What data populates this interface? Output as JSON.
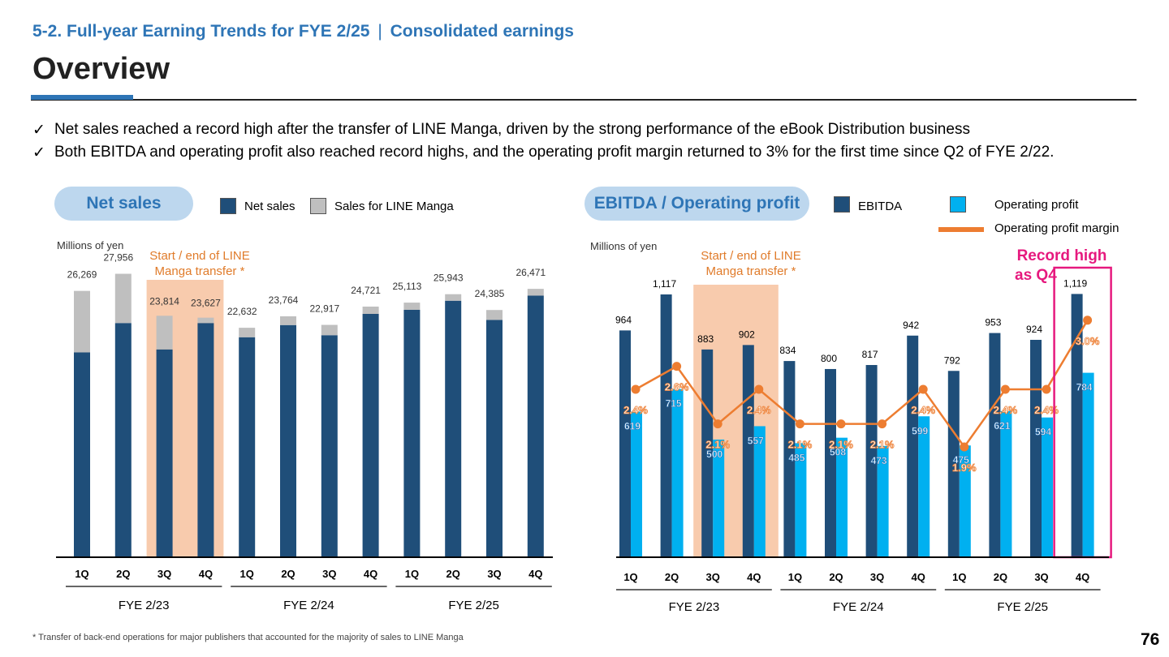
{
  "header": {
    "section": "5-2. Full-year Earning Trends for FYE 2/25",
    "separator": "|",
    "subsection": "Consolidated earnings",
    "title": "Overview"
  },
  "bullets": [
    {
      "mark": "✓",
      "text": "Net sales reached a record high after the transfer of LINE Manga, driven by the strong performance of the eBook Distribution business"
    },
    {
      "mark": "✓",
      "text": "Both EBITDA and operating profit also reached record highs, and the operating profit margin returned to 3% for the first time since Q2 of FYE 2/22."
    }
  ],
  "colors": {
    "brand_blue": "#2e75b6",
    "net_sales": "#1f4e79",
    "line_manga": "#bfbfbf",
    "ebitda": "#1f4e79",
    "operating_profit": "#00b0f0",
    "margin_line": "#ed7d31",
    "transfer_highlight": "#f8cbad",
    "record_highlight": "#e6197e",
    "pill_bg": "#bdd7ee"
  },
  "left_panel": {
    "pill_label": "Net sales",
    "legend": {
      "net_sales": "Net sales",
      "line_manga": "Sales for LINE Manga"
    },
    "unit": "Millions of yen",
    "transfer_note_line1": "Start / end of LINE",
    "transfer_note_line2": "Manga transfer *"
  },
  "right_panel": {
    "pill_label": "EBITDA / Operating profit",
    "legend": {
      "ebitda": "EBITDA",
      "operating_profit": "Operating profit",
      "margin": "Operating profit margin"
    },
    "unit": "Millions of yen",
    "transfer_note_line1": "Start / end of LINE",
    "transfer_note_line2": "Manga transfer *",
    "record_line1": "Record high",
    "record_line2": "as Q4"
  },
  "chart_data": [
    {
      "type": "bar",
      "stacked": true,
      "categories": [
        "1Q",
        "2Q",
        "3Q",
        "4Q",
        "1Q",
        "2Q",
        "3Q",
        "4Q",
        "1Q",
        "2Q",
        "3Q",
        "4Q"
      ],
      "groups": [
        {
          "label": "FYE 2/23",
          "categories": [
            "1Q",
            "2Q",
            "3Q",
            "4Q"
          ]
        },
        {
          "label": "FYE 2/24",
          "categories": [
            "1Q",
            "2Q",
            "3Q",
            "4Q"
          ]
        },
        {
          "label": "FYE 2/25",
          "categories": [
            "1Q",
            "2Q",
            "3Q",
            "4Q"
          ]
        }
      ],
      "series": [
        {
          "name": "Net sales",
          "values": [
            20200,
            23100,
            20500,
            23100,
            21700,
            22900,
            21900,
            24000,
            24400,
            25300,
            23400,
            25800
          ]
        },
        {
          "name": "Sales for LINE Manga",
          "values": [
            6069,
            4856,
            3314,
            527,
            932,
            864,
            1017,
            721,
            713,
            643,
            985,
            671
          ]
        }
      ],
      "totals": [
        "26,269",
        "27,956",
        "23,814",
        "23,627",
        "22,632",
        "23,764",
        "22,917",
        "24,721",
        "25,113",
        "25,943",
        "24,385",
        "26,471"
      ],
      "transfer_period": [
        "FYE 2/23 3Q",
        "FYE 2/23 4Q"
      ],
      "ylim": [
        0,
        30000
      ]
    },
    {
      "type": "bar",
      "categories": [
        "1Q",
        "2Q",
        "3Q",
        "4Q",
        "1Q",
        "2Q",
        "3Q",
        "4Q",
        "1Q",
        "2Q",
        "3Q",
        "4Q"
      ],
      "groups": [
        {
          "label": "FYE 2/23",
          "categories": [
            "1Q",
            "2Q",
            "3Q",
            "4Q"
          ]
        },
        {
          "label": "FYE 2/24",
          "categories": [
            "1Q",
            "2Q",
            "3Q",
            "4Q"
          ]
        },
        {
          "label": "FYE 2/25",
          "categories": [
            "1Q",
            "2Q",
            "3Q",
            "4Q"
          ]
        }
      ],
      "series": [
        {
          "name": "EBITDA",
          "type": "bar",
          "values": [
            964,
            1117,
            883,
            902,
            834,
            800,
            817,
            942,
            792,
            953,
            924,
            1119
          ],
          "labels": [
            "964",
            "1,117",
            "883",
            "902",
            "834",
            "800",
            "817",
            "942",
            "792",
            "953",
            "924",
            "1,119"
          ]
        },
        {
          "name": "Operating profit",
          "type": "bar",
          "values": [
            619,
            715,
            500,
            557,
            485,
            508,
            473,
            599,
            475,
            621,
            594,
            784
          ],
          "labels": [
            "619",
            "715",
            "500",
            "557",
            "485",
            "508",
            "473",
            "599",
            "475",
            "621",
            "594",
            "784"
          ]
        },
        {
          "name": "Operating profit margin",
          "type": "line",
          "unit": "%",
          "values": [
            2.4,
            2.6,
            2.1,
            2.4,
            2.1,
            2.1,
            2.1,
            2.4,
            1.9,
            2.4,
            2.4,
            3.0
          ],
          "labels": [
            "2.4%",
            "2.6%",
            "2.1%",
            "2.4%",
            "2.1%",
            "2.1%",
            "2.1%",
            "2.4%",
            "1.9%",
            "2.4%",
            "2.4%",
            "3.0%"
          ]
        }
      ],
      "transfer_period": [
        "FYE 2/23 3Q",
        "FYE 2/23 4Q"
      ],
      "record_highlight": "FYE 2/25 4Q",
      "ylim": [
        0,
        1300
      ]
    }
  ],
  "footnote": "* Transfer of back-end operations for major publishers that accounted for the majority of sales to LINE Manga",
  "page_number": "76"
}
